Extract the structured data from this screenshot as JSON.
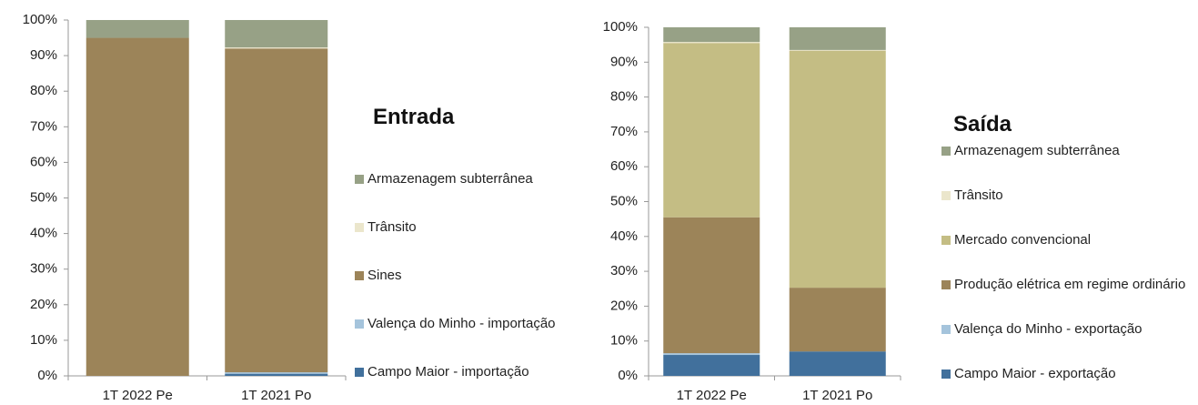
{
  "chart_data": [
    {
      "type": "stacked_bar",
      "title": "Entrada",
      "categories": [
        "1T 2022 Pe",
        "1T 2021 Po"
      ],
      "series": [
        {
          "name": "Campo Maior - importação",
          "color": "#41709c",
          "values": [
            0,
            0.6
          ]
        },
        {
          "name": "Valença do Minho - importação",
          "color": "#a5c4dc",
          "values": [
            0,
            0.4
          ]
        },
        {
          "name": "Sines",
          "color": "#9c8459",
          "values": [
            95,
            91
          ]
        },
        {
          "name": "Trânsito",
          "color": "#ebe6cc",
          "values": [
            0,
            0.3
          ]
        },
        {
          "name": "Armazenagem subterrânea",
          "color": "#97a186",
          "values": [
            5,
            7.7
          ]
        }
      ],
      "ylim": [
        0,
        100
      ],
      "yticks": [
        {
          "value": 0,
          "label": "0%"
        },
        {
          "value": 10,
          "label": "10%"
        },
        {
          "value": 20,
          "label": "20%"
        },
        {
          "value": 30,
          "label": "30%"
        },
        {
          "value": 40,
          "label": "40%"
        },
        {
          "value": 50,
          "label": "50%"
        },
        {
          "value": 60,
          "label": "60%"
        },
        {
          "value": 70,
          "label": "70%"
        },
        {
          "value": 80,
          "label": "80%"
        },
        {
          "value": 90,
          "label": "90%"
        },
        {
          "value": 100,
          "label": "100%"
        }
      ],
      "grid": false,
      "legend": "right"
    },
    {
      "type": "stacked_bar",
      "title": "Saída",
      "categories": [
        "1T 2022 Pe",
        "1T 2021 Po"
      ],
      "series": [
        {
          "name": "Campo Maior - exportação",
          "color": "#41709c",
          "values": [
            6,
            7
          ]
        },
        {
          "name": "Valença do Minho - exportação",
          "color": "#a5c4dc",
          "values": [
            0.5,
            0
          ]
        },
        {
          "name": "Produção elétrica em regime ordinário",
          "color": "#9c8459",
          "values": [
            39,
            18.3
          ]
        },
        {
          "name": "Mercado convencional",
          "color": "#c4bd84",
          "values": [
            50,
            68
          ]
        },
        {
          "name": "Trânsito",
          "color": "#ebe6cc",
          "values": [
            0.3,
            0.2
          ]
        },
        {
          "name": "Armazenagem subterrânea",
          "color": "#97a186",
          "values": [
            4.2,
            6.5
          ]
        }
      ],
      "ylim": [
        0,
        100
      ],
      "yticks": [
        {
          "value": 0,
          "label": "0%"
        },
        {
          "value": 10,
          "label": "10%"
        },
        {
          "value": 20,
          "label": "20%"
        },
        {
          "value": 30,
          "label": "30%"
        },
        {
          "value": 40,
          "label": "40%"
        },
        {
          "value": 50,
          "label": "50%"
        },
        {
          "value": 60,
          "label": "60%"
        },
        {
          "value": 70,
          "label": "70%"
        },
        {
          "value": 80,
          "label": "80%"
        },
        {
          "value": 90,
          "label": "90%"
        },
        {
          "value": 100,
          "label": "100%"
        }
      ],
      "grid": false,
      "legend": "right"
    }
  ]
}
